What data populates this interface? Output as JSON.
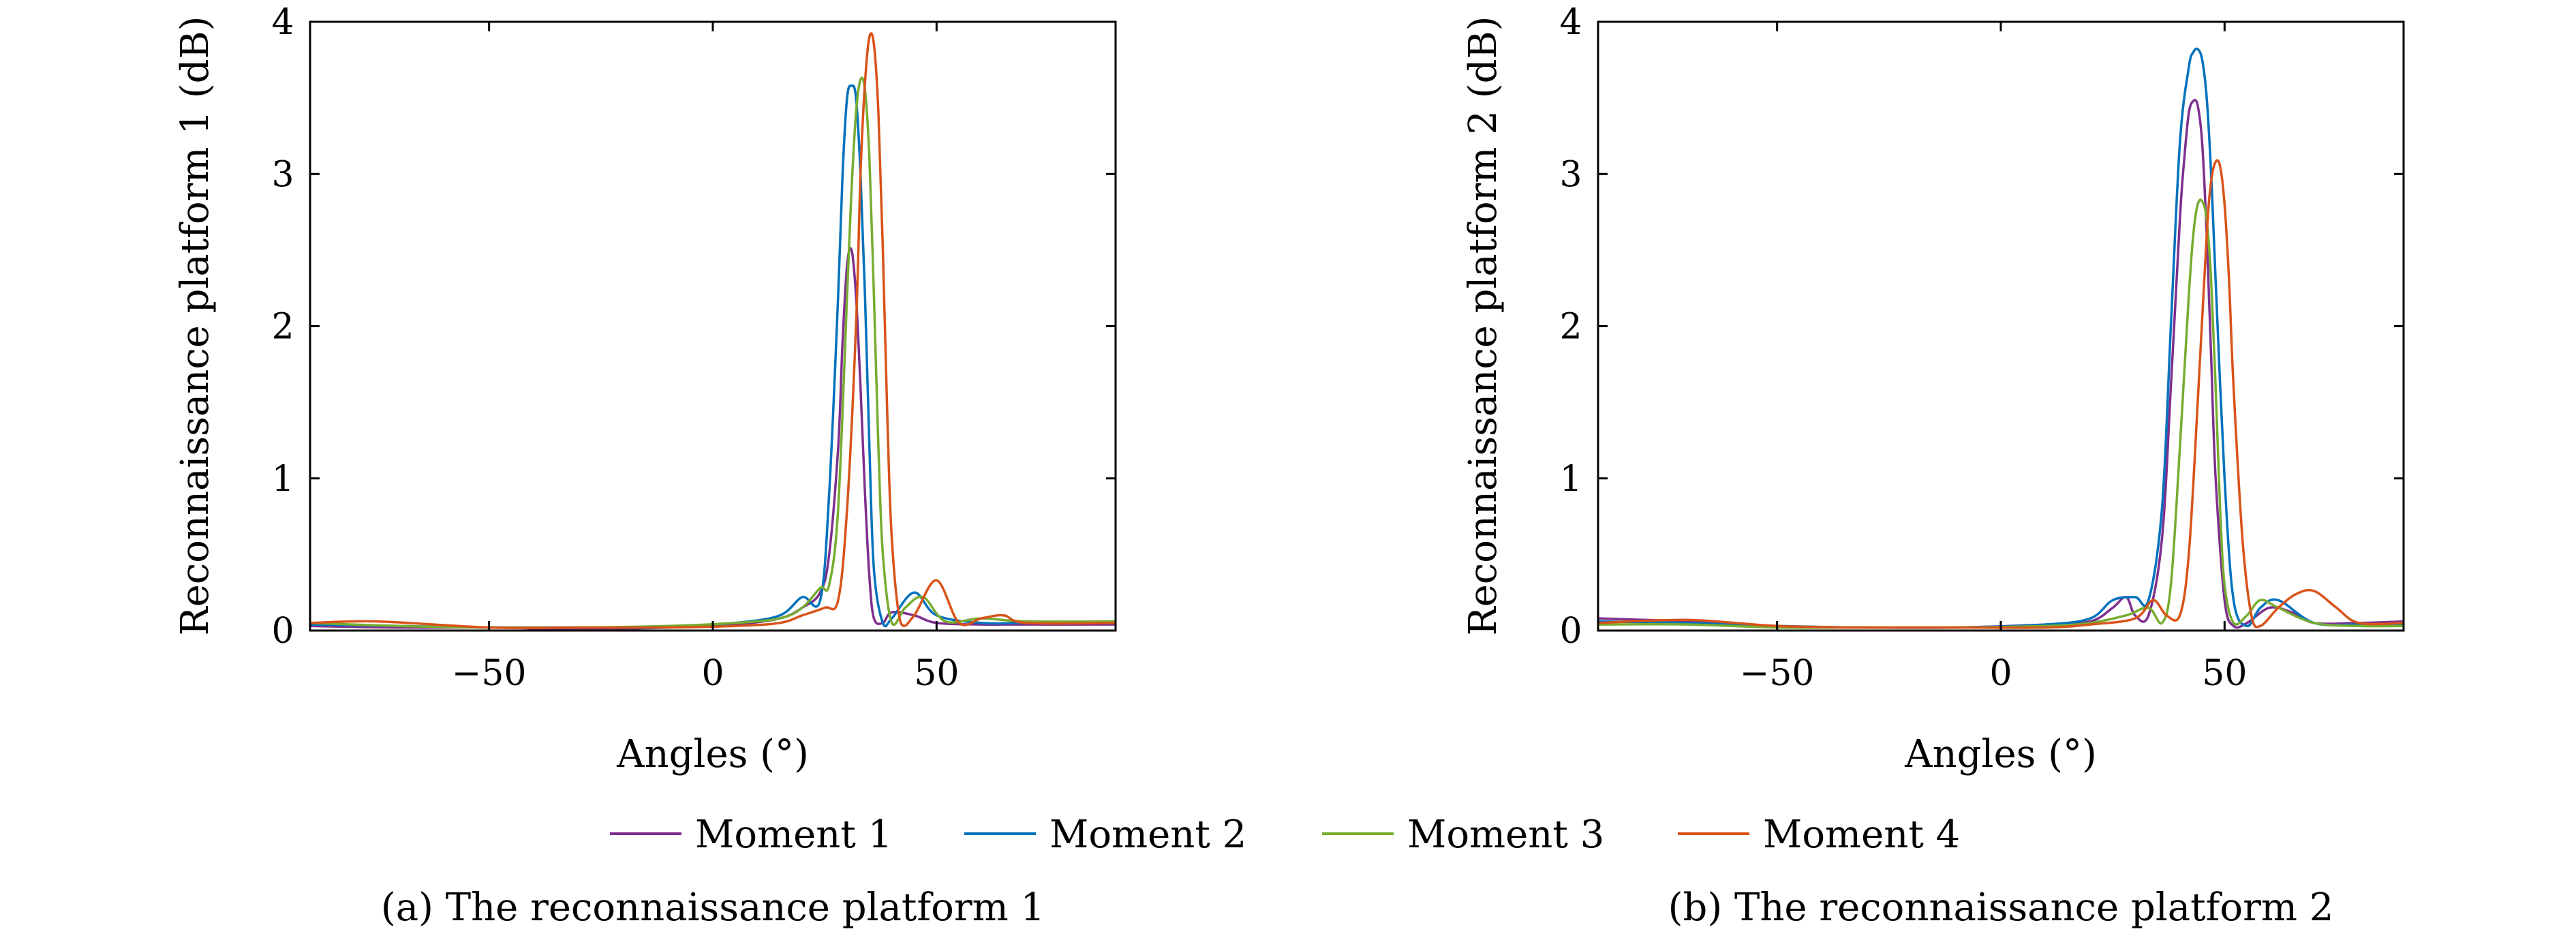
{
  "legend": {
    "items": [
      {
        "label": "Moment 1",
        "color": "#7E2F8E"
      },
      {
        "label": "Moment 2",
        "color": "#0072BD"
      },
      {
        "label": "Moment 3",
        "color": "#77AC30"
      },
      {
        "label": "Moment 4",
        "color": "#D95319"
      }
    ]
  },
  "chart_data": [
    {
      "type": "line",
      "caption": "(a) The reconnaissance platform 1",
      "xlabel": "Angles (°)",
      "ylabel": "Reconnaissance platform 1 (dB)",
      "xlim": [
        -90,
        90
      ],
      "ylim": [
        0,
        4
      ],
      "xticks": [
        -50,
        0,
        50
      ],
      "xtick_labels": [
        "−50",
        "0",
        "50"
      ],
      "yticks": [
        0,
        1,
        2,
        3,
        4
      ],
      "ytick_labels": [
        "0",
        "1",
        "2",
        "3",
        "4"
      ],
      "grid": false,
      "series": [
        {
          "name": "Moment 1",
          "color": "#7E2F8E",
          "x": [
            -90,
            -70,
            -50,
            -30,
            -10,
            5,
            15,
            20,
            24,
            26,
            28,
            29,
            30,
            31,
            32,
            33,
            34,
            35,
            36,
            38,
            40,
            45,
            50,
            60,
            70,
            90
          ],
          "y": [
            0.03,
            0.02,
            0.02,
            0.01,
            0.02,
            0.04,
            0.08,
            0.15,
            0.25,
            0.5,
            1.2,
            1.9,
            2.4,
            2.5,
            2.2,
            1.6,
            0.9,
            0.35,
            0.08,
            0.05,
            0.12,
            0.1,
            0.05,
            0.04,
            0.04,
            0.04
          ]
        },
        {
          "name": "Moment 2",
          "color": "#0072BD",
          "x": [
            -90,
            -70,
            -50,
            -30,
            -10,
            5,
            15,
            20,
            24,
            26,
            28,
            29,
            30,
            31,
            32,
            33,
            34,
            35,
            36,
            38,
            40,
            45,
            50,
            60,
            70,
            90
          ],
          "y": [
            0.04,
            0.03,
            0.02,
            0.02,
            0.02,
            0.05,
            0.1,
            0.22,
            0.2,
            0.9,
            2.2,
            3.0,
            3.5,
            3.58,
            3.5,
            3.0,
            2.2,
            1.2,
            0.4,
            0.05,
            0.08,
            0.25,
            0.1,
            0.05,
            0.05,
            0.05
          ]
        },
        {
          "name": "Moment 3",
          "color": "#77AC30",
          "x": [
            -90,
            -70,
            -50,
            -30,
            -10,
            5,
            15,
            20,
            24,
            26,
            28,
            30,
            31,
            32,
            33,
            34,
            35,
            36,
            37,
            38,
            40,
            43,
            47,
            52,
            60,
            70,
            90
          ],
          "y": [
            0.05,
            0.03,
            0.02,
            0.02,
            0.03,
            0.05,
            0.08,
            0.15,
            0.28,
            0.3,
            0.8,
            2.2,
            2.9,
            3.4,
            3.62,
            3.55,
            3.1,
            2.2,
            1.2,
            0.5,
            0.05,
            0.15,
            0.22,
            0.06,
            0.08,
            0.06,
            0.06
          ]
        },
        {
          "name": "Moment 4",
          "color": "#D95319",
          "x": [
            -90,
            -75,
            -50,
            -30,
            -10,
            5,
            15,
            20,
            25,
            28,
            30,
            32,
            33,
            34,
            35,
            36,
            37,
            38,
            39,
            40,
            42,
            45,
            50,
            55,
            60,
            65,
            70,
            90
          ],
          "y": [
            0.05,
            0.06,
            0.02,
            0.02,
            0.02,
            0.03,
            0.05,
            0.1,
            0.15,
            0.2,
            0.8,
            2.0,
            3.0,
            3.6,
            3.9,
            3.85,
            3.4,
            2.5,
            1.4,
            0.6,
            0.05,
            0.1,
            0.33,
            0.05,
            0.08,
            0.1,
            0.05,
            0.05
          ]
        }
      ]
    },
    {
      "type": "line",
      "caption": "(b) The reconnaissance platform 2",
      "xlabel": "Angles (°)",
      "ylabel": "Reconnaissance platform 2 (dB)",
      "xlim": [
        -90,
        90
      ],
      "ylim": [
        0,
        4
      ],
      "xticks": [
        -50,
        0,
        50
      ],
      "xtick_labels": [
        "−50",
        "0",
        "50"
      ],
      "yticks": [
        0,
        1,
        2,
        3,
        4
      ],
      "ytick_labels": [
        "0",
        "1",
        "2",
        "3",
        "4"
      ],
      "grid": false,
      "series": [
        {
          "name": "Moment 1",
          "color": "#7E2F8E",
          "x": [
            -90,
            -70,
            -50,
            -30,
            -10,
            10,
            20,
            25,
            28,
            30,
            33,
            36,
            38,
            40,
            41,
            42,
            43,
            44,
            45,
            46,
            47,
            48,
            50,
            52,
            55,
            60,
            65,
            70,
            80,
            90
          ],
          "y": [
            0.08,
            0.06,
            0.03,
            0.02,
            0.02,
            0.04,
            0.06,
            0.15,
            0.22,
            0.1,
            0.1,
            0.6,
            1.6,
            2.7,
            3.1,
            3.4,
            3.48,
            3.45,
            3.2,
            2.6,
            1.8,
            1.0,
            0.2,
            0.03,
            0.05,
            0.15,
            0.12,
            0.05,
            0.05,
            0.06
          ]
        },
        {
          "name": "Moment 2",
          "color": "#0072BD",
          "x": [
            -90,
            -70,
            -50,
            -30,
            -10,
            10,
            20,
            25,
            30,
            33,
            36,
            38,
            40,
            42,
            43,
            44,
            45,
            46,
            47,
            48,
            50,
            52,
            55,
            58,
            62,
            70,
            80,
            90
          ],
          "y": [
            0.06,
            0.05,
            0.03,
            0.02,
            0.02,
            0.04,
            0.08,
            0.2,
            0.22,
            0.2,
            0.8,
            2.0,
            3.2,
            3.7,
            3.8,
            3.82,
            3.75,
            3.5,
            3.0,
            2.3,
            1.0,
            0.2,
            0.03,
            0.15,
            0.2,
            0.05,
            0.04,
            0.04
          ]
        },
        {
          "name": "Moment 3",
          "color": "#77AC30",
          "x": [
            -90,
            -70,
            -50,
            -30,
            -10,
            10,
            20,
            28,
            33,
            36,
            38,
            40,
            42,
            43,
            44,
            45,
            46,
            47,
            48,
            49,
            50,
            52,
            55,
            58,
            62,
            70,
            80,
            90
          ],
          "y": [
            0.04,
            0.04,
            0.02,
            0.02,
            0.02,
            0.03,
            0.05,
            0.1,
            0.15,
            0.05,
            0.3,
            1.2,
            2.2,
            2.6,
            2.8,
            2.82,
            2.7,
            2.3,
            1.6,
            0.8,
            0.3,
            0.05,
            0.1,
            0.2,
            0.15,
            0.05,
            0.03,
            0.03
          ]
        },
        {
          "name": "Moment 4",
          "color": "#D95319",
          "x": [
            -90,
            -70,
            -50,
            -30,
            -10,
            10,
            20,
            30,
            34,
            37,
            40,
            42,
            44,
            46,
            47,
            48,
            49,
            50,
            51,
            52,
            54,
            56,
            58,
            62,
            66,
            70,
            75,
            80,
            90
          ],
          "y": [
            0.05,
            0.07,
            0.03,
            0.02,
            0.02,
            0.02,
            0.04,
            0.08,
            0.2,
            0.1,
            0.1,
            0.5,
            1.5,
            2.6,
            2.95,
            3.08,
            3.05,
            2.8,
            2.3,
            1.6,
            0.6,
            0.1,
            0.03,
            0.15,
            0.24,
            0.26,
            0.15,
            0.05,
            0.05
          ]
        }
      ]
    }
  ]
}
